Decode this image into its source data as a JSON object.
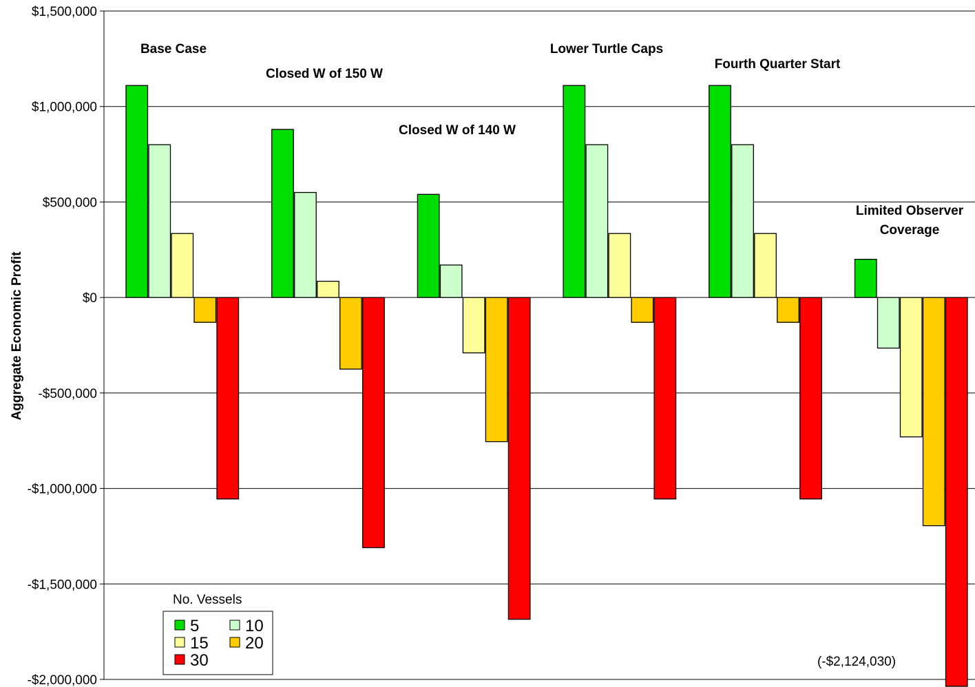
{
  "chart_data": {
    "type": "bar",
    "title": "",
    "xlabel": "",
    "ylabel": "Aggregate Economic Profit",
    "ylim": [
      -2000000,
      1500000
    ],
    "y_ticks": [
      1500000,
      1000000,
      500000,
      0,
      -500000,
      -1000000,
      -1500000,
      -2000000
    ],
    "y_tick_labels": [
      "$1,500,000",
      "$1,000,000",
      "$500,000",
      "$0",
      "-$500,000",
      "-$1,000,000",
      "-$1,500,000",
      "-$2,000,000"
    ],
    "grid": "horizontal",
    "categories": [
      "Base Case",
      "Closed W of 150 W",
      "Closed W of 140 W",
      "Lower Turtle Caps",
      "Fourth Quarter Start",
      "Limited Observer Coverage"
    ],
    "category_labels": [
      [
        "Base Case"
      ],
      [
        "Closed W of 150 W"
      ],
      [
        "Closed W of 140 W"
      ],
      [
        "Lower Turtle Caps"
      ],
      [
        "Fourth Quarter Start"
      ],
      [
        "Limited Observer",
        "Coverage"
      ]
    ],
    "legend_title": "No. Vessels",
    "legend_position": "bottom-left",
    "series": [
      {
        "name": "5",
        "color": "#00dd00",
        "values": [
          1110000,
          880000,
          540000,
          1110000,
          1110000,
          200000
        ]
      },
      {
        "name": "10",
        "color": "#ccffcc",
        "values": [
          800000,
          550000,
          170000,
          800000,
          800000,
          -265000
        ]
      },
      {
        "name": "15",
        "color": "#ffff99",
        "values": [
          335000,
          85000,
          -290000,
          335000,
          335000,
          -730000
        ]
      },
      {
        "name": "20",
        "color": "#ffcc00",
        "values": [
          -130000,
          -375000,
          -755000,
          -130000,
          -130000,
          -1195000
        ]
      },
      {
        "name": "30",
        "color": "#ff0000",
        "values": [
          -1055000,
          -1310000,
          -1685000,
          -1055000,
          -1055000,
          -2124030
        ]
      }
    ],
    "annotations": [
      "(-$2,124,030)"
    ]
  }
}
